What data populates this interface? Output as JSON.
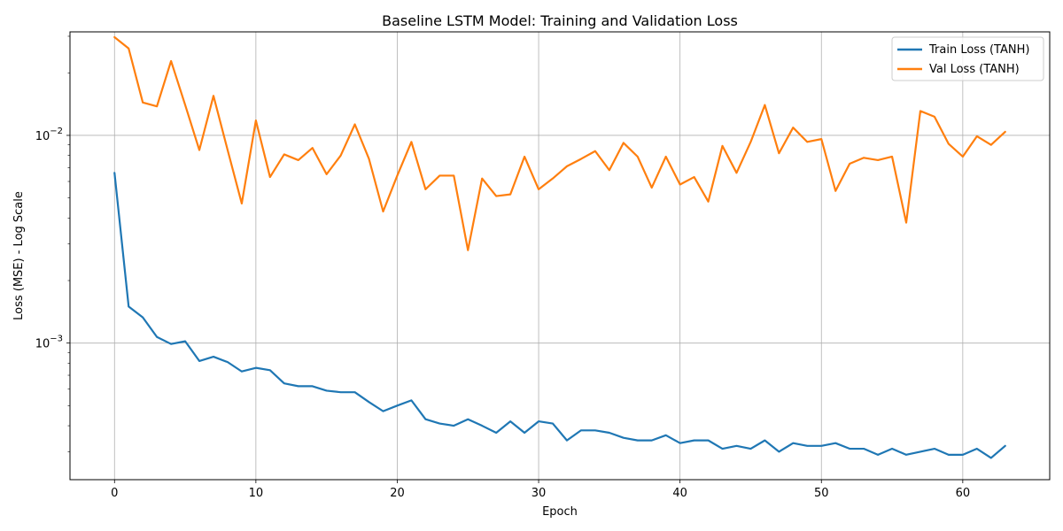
{
  "chart_data": {
    "type": "line",
    "title": "Baseline LSTM Model: Training and Validation Loss",
    "xlabel": "Epoch",
    "ylabel": "Loss (MSE) - Log Scale",
    "yscale": "log",
    "xlim": [
      -3.15,
      66.15
    ],
    "ylim": [
      0.00022,
      0.0315
    ],
    "xticks": [
      0,
      10,
      20,
      30,
      40,
      50,
      60
    ],
    "xtick_labels": [
      "0",
      "10",
      "20",
      "30",
      "40",
      "50",
      "60"
    ],
    "yticks": [
      0.001,
      0.01
    ],
    "ytick_labels": [
      {
        "base": "10",
        "exp": "−3"
      },
      {
        "base": "10",
        "exp": "−2"
      }
    ],
    "grid": true,
    "legend_position": "top-right",
    "x": [
      0,
      1,
      2,
      3,
      4,
      5,
      6,
      7,
      8,
      9,
      10,
      11,
      12,
      13,
      14,
      15,
      16,
      17,
      18,
      19,
      20,
      21,
      22,
      23,
      24,
      25,
      26,
      27,
      28,
      29,
      30,
      31,
      32,
      33,
      34,
      35,
      36,
      37,
      38,
      39,
      40,
      41,
      42,
      43,
      44,
      45,
      46,
      47,
      48,
      49,
      50,
      51,
      52,
      53,
      54,
      55,
      56,
      57,
      58,
      59,
      60,
      61,
      62,
      63
    ],
    "series": [
      {
        "name": "Train Loss (TANH)",
        "color": "#1f77b4",
        "values": [
          0.0066,
          0.0015,
          0.00133,
          0.00107,
          0.00099,
          0.00102,
          0.00082,
          0.00086,
          0.00081,
          0.00073,
          0.00076,
          0.00074,
          0.00064,
          0.00062,
          0.00062,
          0.00059,
          0.00058,
          0.00058,
          0.00052,
          0.00047,
          0.0005,
          0.00053,
          0.00043,
          0.00041,
          0.0004,
          0.00043,
          0.0004,
          0.00037,
          0.00042,
          0.00037,
          0.00042,
          0.00041,
          0.00034,
          0.00038,
          0.00038,
          0.00037,
          0.00035,
          0.00034,
          0.00034,
          0.00036,
          0.00033,
          0.00034,
          0.00034,
          0.00031,
          0.00032,
          0.00031,
          0.00034,
          0.0003,
          0.00033,
          0.00032,
          0.00032,
          0.00033,
          0.00031,
          0.00031,
          0.00029,
          0.00031,
          0.00029,
          0.0003,
          0.00031,
          0.00029,
          0.00029,
          0.00031,
          0.00028,
          0.00032
        ]
      },
      {
        "name": "Val Loss (TANH)",
        "color": "#ff7f0e",
        "values": [
          0.0297,
          0.0262,
          0.0144,
          0.0138,
          0.0228,
          0.014,
          0.0085,
          0.0155,
          0.0085,
          0.0047,
          0.0118,
          0.0063,
          0.0081,
          0.0076,
          0.0087,
          0.0065,
          0.008,
          0.0113,
          0.0077,
          0.0043,
          0.0064,
          0.0093,
          0.0055,
          0.0064,
          0.0064,
          0.0028,
          0.0062,
          0.0051,
          0.0052,
          0.0079,
          0.0055,
          0.0062,
          0.0071,
          0.0077,
          0.0084,
          0.0068,
          0.0092,
          0.0079,
          0.0056,
          0.0079,
          0.0058,
          0.0063,
          0.0048,
          0.0089,
          0.0066,
          0.0093,
          0.014,
          0.0082,
          0.0109,
          0.0093,
          0.0096,
          0.0054,
          0.0073,
          0.0078,
          0.0076,
          0.0079,
          0.0038,
          0.0131,
          0.0123,
          0.0091,
          0.0079,
          0.0099,
          0.009,
          0.0104
        ]
      }
    ]
  }
}
